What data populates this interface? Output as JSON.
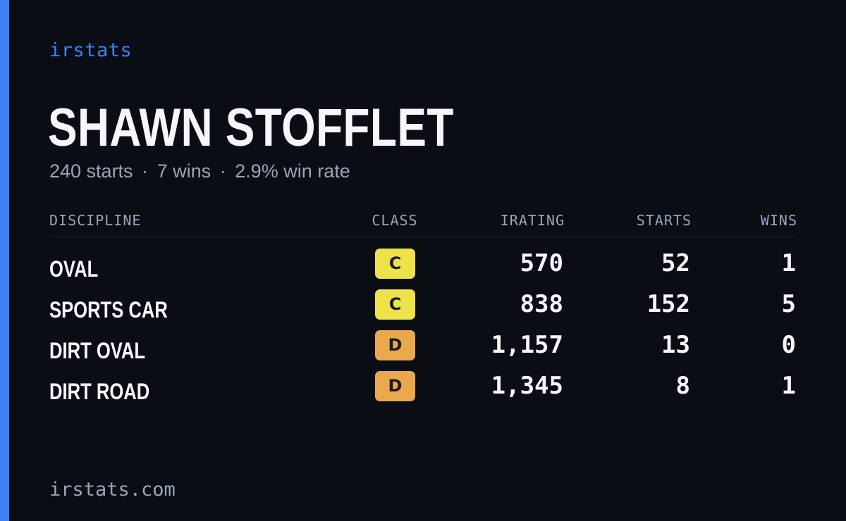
{
  "brand": "irstats",
  "driver": {
    "name": "SHAWN STOFFLET",
    "starts": "240 starts",
    "wins": "7 wins",
    "win_rate": "2.9% win rate",
    "separator": "·"
  },
  "table": {
    "headers": {
      "discipline": "DISCIPLINE",
      "class": "CLASS",
      "irating": "IRATING",
      "starts": "STARTS",
      "wins": "WINS"
    },
    "rows": [
      {
        "discipline": "OVAL",
        "class": "C",
        "class_color": "#ede24a",
        "irating": "570",
        "starts": "52",
        "wins": "1"
      },
      {
        "discipline": "SPORTS CAR",
        "class": "C",
        "class_color": "#ede24a",
        "irating": "838",
        "starts": "152",
        "wins": "5"
      },
      {
        "discipline": "DIRT OVAL",
        "class": "D",
        "class_color": "#eaa84c",
        "irating": "1,157",
        "starts": "13",
        "wins": "0"
      },
      {
        "discipline": "DIRT ROAD",
        "class": "D",
        "class_color": "#eaa84c",
        "irating": "1,345",
        "starts": "8",
        "wins": "1"
      }
    ]
  },
  "footer": "irstats.com",
  "colors": {
    "background": "#0a0d14",
    "accent": "#3b82f6"
  }
}
